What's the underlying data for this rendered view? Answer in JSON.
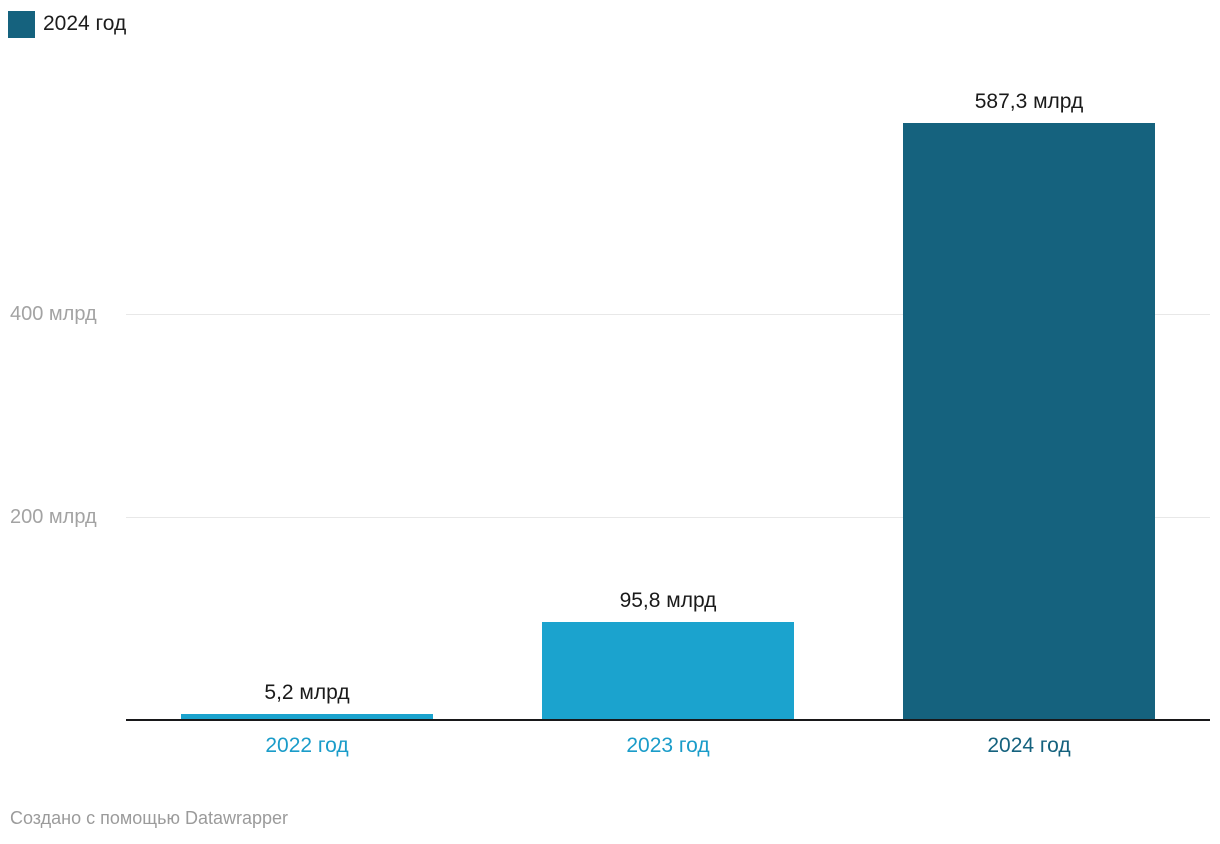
{
  "legend": {
    "label": "2024 год",
    "swatch_color": "#15627e"
  },
  "footer": {
    "credit": "Создано с помощью Datawrapper"
  },
  "colors": {
    "bar_light_blue": "#1ba3ce",
    "bar_dark_teal": "#15627e",
    "axis_line": "#18181a",
    "gridline": "#e8e8e8",
    "y_tick_text": "#a3a3a3",
    "value_label_text": "#1a1a1a",
    "footer_text": "#9b9b9b"
  },
  "chart_data": {
    "type": "bar",
    "categories": [
      "2022 год",
      "2023 год",
      "2024 год"
    ],
    "values": [
      5.2,
      95.8,
      587.3
    ],
    "value_labels": [
      "5,2 млрд",
      "95,8 млрд",
      "587,3 млрд"
    ],
    "bar_colors": [
      "#1ba3ce",
      "#1ba3ce",
      "#15627e"
    ],
    "tick_label_colors": [
      "#1a9cc9",
      "#1a9cc9",
      "#15627e"
    ],
    "unit": "млрд",
    "yticks": [
      {
        "value": 200,
        "label": "200 млрд"
      },
      {
        "value": 400,
        "label": "400 млрд"
      }
    ],
    "ylim": [
      0,
      600
    ],
    "grid": true,
    "legend_position": "top-left",
    "title": "",
    "xlabel": "",
    "ylabel": ""
  }
}
